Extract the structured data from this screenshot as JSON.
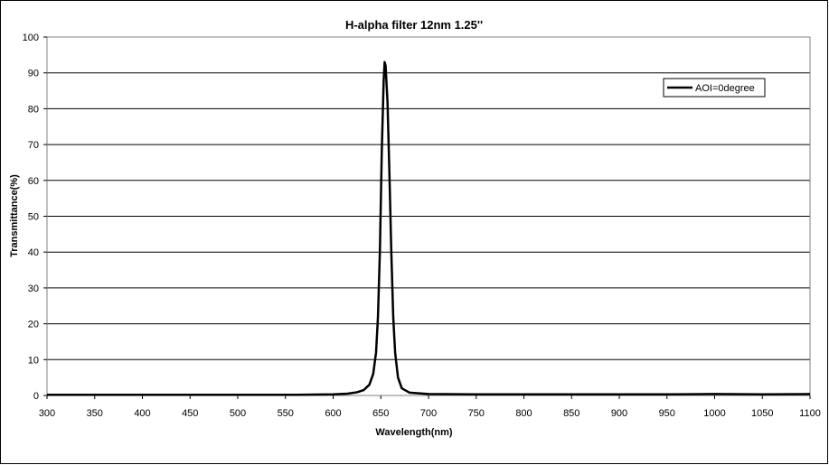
{
  "chart_data": {
    "type": "line",
    "title": "H-alpha filter 12nm  1.25''",
    "xlabel": "Wavelength(nm)",
    "ylabel": "Transmittance(%)",
    "xlim": [
      300,
      1100
    ],
    "ylim": [
      0,
      100
    ],
    "x_ticks": [
      300,
      350,
      400,
      450,
      500,
      550,
      600,
      650,
      700,
      750,
      800,
      850,
      900,
      950,
      1000,
      1050,
      1100
    ],
    "y_ticks": [
      0,
      10,
      20,
      30,
      40,
      50,
      60,
      70,
      80,
      90,
      100
    ],
    "grid": "horizontal",
    "legend_position": "top-right",
    "series": [
      {
        "name": "AOI=0degree",
        "color": "#000000",
        "points": [
          [
            300,
            0.2
          ],
          [
            400,
            0.2
          ],
          [
            500,
            0.2
          ],
          [
            560,
            0.2
          ],
          [
            600,
            0.3
          ],
          [
            615,
            0.5
          ],
          [
            625,
            0.9
          ],
          [
            632,
            1.5
          ],
          [
            638,
            3.0
          ],
          [
            642,
            6.0
          ],
          [
            645,
            12.0
          ],
          [
            647,
            22.0
          ],
          [
            649,
            40.0
          ],
          [
            651,
            68.0
          ],
          [
            653,
            88.0
          ],
          [
            654,
            93.0
          ],
          [
            655,
            92.0
          ],
          [
            657,
            82.0
          ],
          [
            659,
            62.0
          ],
          [
            661,
            40.0
          ],
          [
            663,
            22.0
          ],
          [
            665,
            12.0
          ],
          [
            668,
            5.0
          ],
          [
            672,
            2.0
          ],
          [
            680,
            0.8
          ],
          [
            700,
            0.4
          ],
          [
            750,
            0.3
          ],
          [
            800,
            0.3
          ],
          [
            850,
            0.3
          ],
          [
            900,
            0.3
          ],
          [
            950,
            0.3
          ],
          [
            1000,
            0.4
          ],
          [
            1050,
            0.3
          ],
          [
            1100,
            0.4
          ]
        ]
      }
    ]
  }
}
